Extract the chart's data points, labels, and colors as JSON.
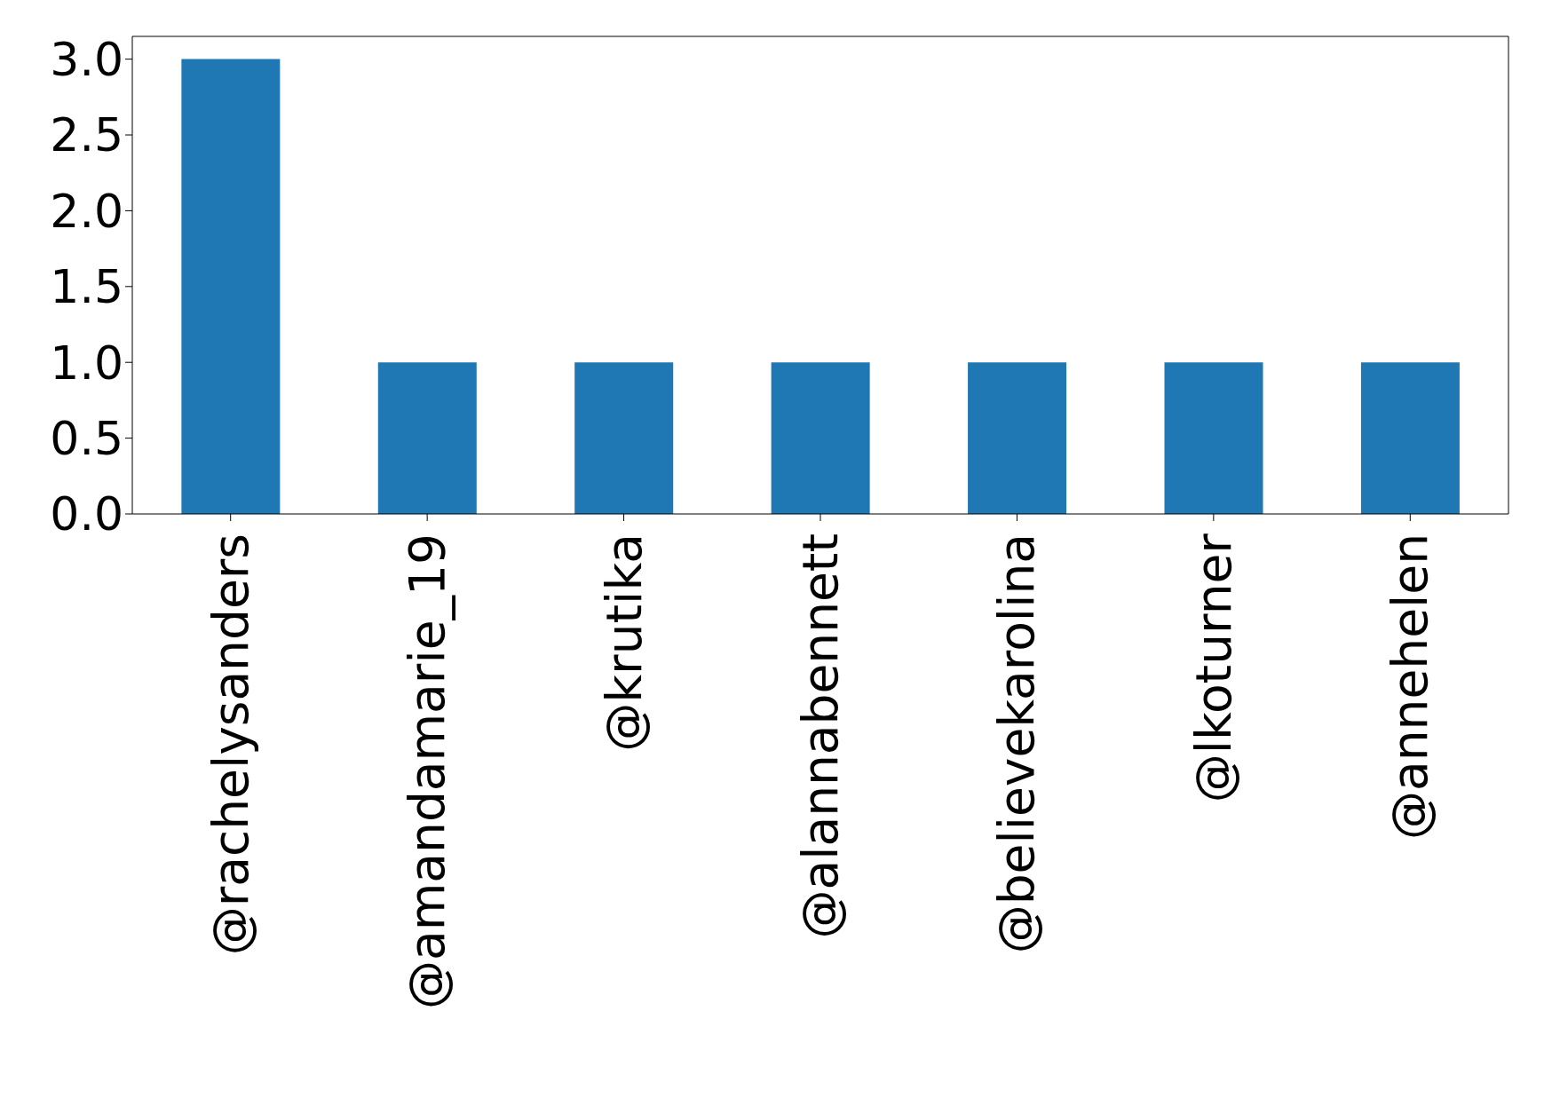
{
  "chart_data": {
    "type": "bar",
    "categories": [
      "@rachelysanders",
      "@amandamarie_19",
      "@krutika",
      "@alannabennett",
      "@believekarolina",
      "@lkoturner",
      "@annehelen"
    ],
    "values": [
      3,
      1,
      1,
      1,
      1,
      1,
      1
    ],
    "color": "#1f77b4",
    "ylim": [
      0,
      3.15
    ],
    "yticks": [
      {
        "value": 0,
        "label": "0.0"
      },
      {
        "value": 0.5,
        "label": "0.5"
      },
      {
        "value": 1,
        "label": "1.0"
      },
      {
        "value": 1.5,
        "label": "1.5"
      },
      {
        "value": 2,
        "label": "2.0"
      },
      {
        "value": 2.5,
        "label": "2.5"
      },
      {
        "value": 3,
        "label": "3.0"
      }
    ],
    "grid": false
  }
}
